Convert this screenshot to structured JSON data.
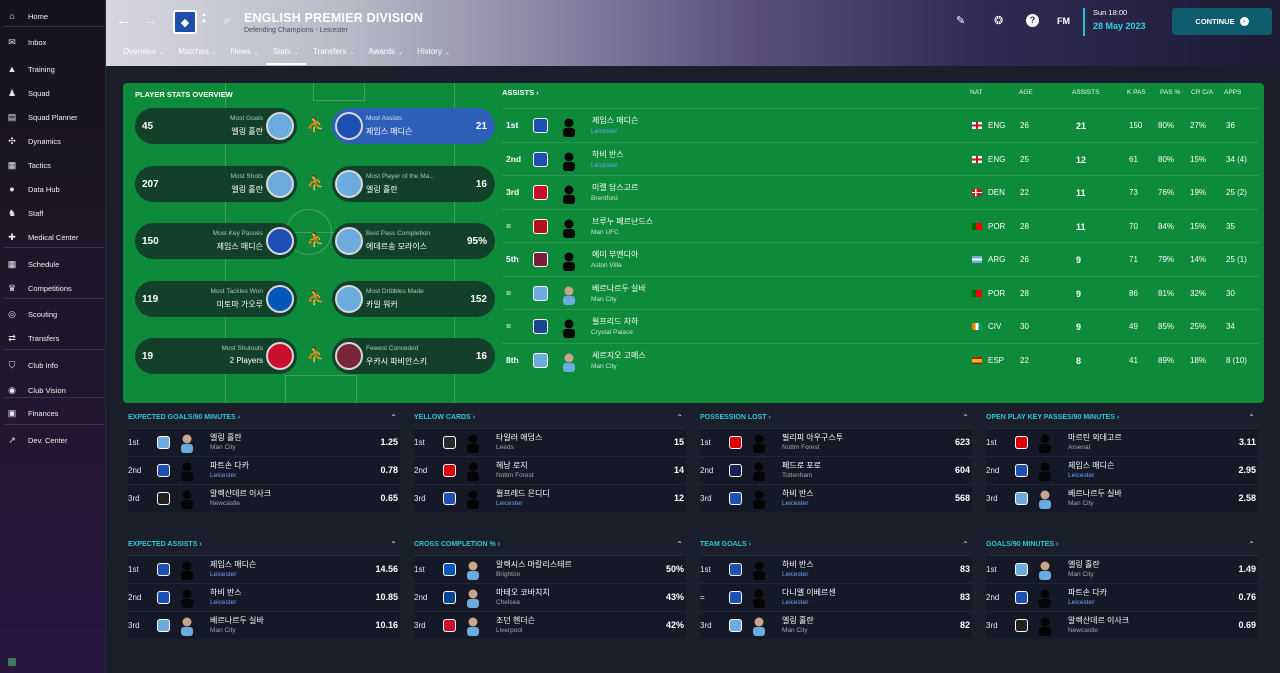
{
  "sidebar": {
    "items": [
      {
        "label": "Home",
        "icon": "home-icon",
        "glyph": "⌂"
      },
      {
        "label": "Inbox",
        "icon": "inbox-icon",
        "glyph": "✉"
      },
      {
        "label": "Training",
        "icon": "training-icon",
        "glyph": "▲"
      },
      {
        "label": "Squad",
        "icon": "squad-icon",
        "glyph": "♟"
      },
      {
        "label": "Squad Planner",
        "icon": "squad-planner-icon",
        "glyph": "▤"
      },
      {
        "label": "Dynamics",
        "icon": "dynamics-icon",
        "glyph": "✣"
      },
      {
        "label": "Tactics",
        "icon": "tactics-icon",
        "glyph": "▦"
      },
      {
        "label": "Data Hub",
        "icon": "data-hub-icon",
        "glyph": "●"
      },
      {
        "label": "Staff",
        "icon": "staff-icon",
        "glyph": "♞"
      },
      {
        "label": "Medical Center",
        "icon": "medical-icon",
        "glyph": "✚"
      },
      {
        "label": "Schedule",
        "icon": "schedule-icon",
        "glyph": "▦"
      },
      {
        "label": "Competitions",
        "icon": "trophy-icon",
        "glyph": "♛"
      },
      {
        "label": "Scouting",
        "icon": "scouting-icon",
        "glyph": "◎"
      },
      {
        "label": "Transfers",
        "icon": "transfers-icon",
        "glyph": "⇄"
      },
      {
        "label": "Club Info",
        "icon": "shield-icon",
        "glyph": "⛉"
      },
      {
        "label": "Club Vision",
        "icon": "vision-icon",
        "glyph": "◉"
      },
      {
        "label": "Finances",
        "icon": "finances-icon",
        "glyph": "▣"
      },
      {
        "label": "Dev. Center",
        "icon": "dev-center-icon",
        "glyph": "↗"
      }
    ]
  },
  "header": {
    "title": "ENGLISH PREMIER DIVISION",
    "subtitle": "Defending Champions - Leicester",
    "tabs": [
      "Overview",
      "Matches",
      "News",
      "Stats",
      "Transfers",
      "Awards",
      "History"
    ],
    "active_tab": "Stats",
    "date_line1": "Sun 18:00",
    "date_line2": "28 May 2023",
    "continue_label": "CONTINUE",
    "fm_label": "FM"
  },
  "overview": {
    "title": "PLAYER STATS OVERVIEW",
    "rows": [
      {
        "left": {
          "value": "45",
          "category": "Most Goals",
          "player": "엘링 홀란",
          "club": "mci"
        },
        "right": {
          "value": "21",
          "category": "Most Assists",
          "player": "제임스 매디슨",
          "club": "lei",
          "highlight": true
        }
      },
      {
        "left": {
          "value": "207",
          "category": "Most Shots",
          "player": "엘링 홀란",
          "club": "mci"
        },
        "right": {
          "value": "16",
          "category": "Most Player of the Ma...",
          "player": "엘링 홀란",
          "club": "mci"
        }
      },
      {
        "left": {
          "value": "150",
          "category": "Most Key Passes",
          "player": "제임스 매디슨",
          "club": "lei"
        },
        "right": {
          "value": "95%",
          "category": "Best Pass Completion",
          "player": "에데르송 모라이스",
          "club": "mci"
        }
      },
      {
        "left": {
          "value": "119",
          "category": "Most Tackles Won",
          "player": "미토마 가오루",
          "club": "bha"
        },
        "right": {
          "value": "152",
          "category": "Most Dribbles Made",
          "player": "카일 워커",
          "club": "mci"
        }
      },
      {
        "left": {
          "value": "19",
          "category": "Most Shutouts",
          "player": "2 Players",
          "club": "bre"
        },
        "right": {
          "value": "16",
          "category": "Fewest Conceded",
          "player": "우카시 파비안스키",
          "club": "whu"
        }
      }
    ]
  },
  "assists": {
    "title": "ASSISTS",
    "headers": {
      "nat": "NAT",
      "age": "AGE",
      "assists": "ASSISTS",
      "kpas": "K PAS",
      "pas": "PAS %",
      "crca": "CR C/A",
      "apps": "APPS"
    },
    "rows": [
      {
        "rank": "1st",
        "player": "제임스 매디슨",
        "club": "Leicester",
        "club_code": "lei",
        "nat": "ENG",
        "flag": "eng",
        "age": "26",
        "assists": "21",
        "kpas": "150",
        "pas": "80%",
        "crca": "27%",
        "apps": "36",
        "photo": false
      },
      {
        "rank": "2nd",
        "player": "하비 반스",
        "club": "Leicester",
        "club_code": "lei",
        "nat": "ENG",
        "flag": "eng",
        "age": "25",
        "assists": "12",
        "kpas": "61",
        "pas": "80%",
        "crca": "15%",
        "apps": "34 (4)",
        "photo": false
      },
      {
        "rank": "3rd",
        "player": "미켈 담스고르",
        "club": "Brentford",
        "club_code": "bre",
        "nat": "DEN",
        "flag": "den",
        "age": "22",
        "assists": "11",
        "kpas": "73",
        "pas": "76%",
        "crca": "19%",
        "apps": "25 (2)",
        "photo": false
      },
      {
        "rank": "=",
        "player": "브루누 페르난드스",
        "club": "Man UFC",
        "club_code": "mun",
        "nat": "POR",
        "flag": "por",
        "age": "28",
        "assists": "11",
        "kpas": "70",
        "pas": "84%",
        "crca": "15%",
        "apps": "35",
        "photo": false
      },
      {
        "rank": "5th",
        "player": "에미 부엔디아",
        "club": "Aston Villa",
        "club_code": "avl",
        "nat": "ARG",
        "flag": "arg",
        "age": "26",
        "assists": "9",
        "kpas": "71",
        "pas": "79%",
        "crca": "14%",
        "apps": "25 (1)",
        "photo": false
      },
      {
        "rank": "=",
        "player": "베르나르두 실바",
        "club": "Man City",
        "club_code": "mci",
        "nat": "POR",
        "flag": "por",
        "age": "28",
        "assists": "9",
        "kpas": "86",
        "pas": "81%",
        "crca": "32%",
        "apps": "30",
        "photo": true
      },
      {
        "rank": "=",
        "player": "윌프리드 자하",
        "club": "Crystal Palace",
        "club_code": "cry",
        "nat": "CIV",
        "flag": "civ",
        "age": "30",
        "assists": "9",
        "kpas": "49",
        "pas": "85%",
        "crca": "25%",
        "apps": "34",
        "photo": false
      },
      {
        "rank": "8th",
        "player": "세르지오 고메스",
        "club": "Man City",
        "club_code": "mci",
        "nat": "ESP",
        "flag": "esp",
        "age": "22",
        "assists": "8",
        "kpas": "41",
        "pas": "89%",
        "crca": "18%",
        "apps": "8 (10)",
        "photo": true
      }
    ]
  },
  "panels": [
    {
      "title": "EXPECTED GOALS/90 MINUTES",
      "rows": [
        {
          "rank": "1st",
          "player": "엘링 홀란",
          "club": "Man City",
          "club_code": "mci",
          "value": "1.25",
          "photo": true
        },
        {
          "rank": "2nd",
          "player": "파트손 다카",
          "club": "Leicester",
          "club_code": "lei",
          "value": "0.78",
          "photo": false
        },
        {
          "rank": "3rd",
          "player": "알렉산데르 이사크",
          "club": "Newcastle",
          "club_code": "new",
          "value": "0.65",
          "photo": false
        }
      ]
    },
    {
      "title": "YELLOW CARDS",
      "rows": [
        {
          "rank": "1st",
          "player": "타일러 애덤스",
          "club": "Leeds",
          "club_code": "lee",
          "value": "15",
          "photo": false
        },
        {
          "rank": "2nd",
          "player": "헤낭 로지",
          "club": "Nottm Forest",
          "club_code": "nfo",
          "value": "14",
          "photo": false
        },
        {
          "rank": "3rd",
          "player": "윌프레드 은디디",
          "club": "Leicester",
          "club_code": "lei",
          "value": "12",
          "photo": false
        }
      ]
    },
    {
      "title": "POSSESSION LOST",
      "rows": [
        {
          "rank": "1st",
          "player": "필리피 아우구스투",
          "club": "Nottm Forest",
          "club_code": "nfo",
          "value": "623",
          "photo": false
        },
        {
          "rank": "2nd",
          "player": "페드로 포로",
          "club": "Tottenham",
          "club_code": "tot",
          "value": "604",
          "photo": false
        },
        {
          "rank": "3rd",
          "player": "하비 반스",
          "club": "Leicester",
          "club_code": "lei",
          "value": "568",
          "photo": false
        }
      ]
    },
    {
      "title": "OPEN PLAY KEY PASSES/90 MINUTES",
      "rows": [
        {
          "rank": "1st",
          "player": "마르틴 외데고르",
          "club": "Arsenal",
          "club_code": "ars",
          "value": "3.11",
          "photo": false
        },
        {
          "rank": "2nd",
          "player": "제임스 매디슨",
          "club": "Leicester",
          "club_code": "lei",
          "value": "2.95",
          "photo": false
        },
        {
          "rank": "3rd",
          "player": "베르나르두 실바",
          "club": "Man City",
          "club_code": "mci",
          "value": "2.58",
          "photo": true
        }
      ]
    },
    {
      "title": "EXPECTED ASSISTS",
      "rows": [
        {
          "rank": "1st",
          "player": "제임스 매디슨",
          "club": "Leicester",
          "club_code": "lei",
          "value": "14.56",
          "photo": false
        },
        {
          "rank": "2nd",
          "player": "하비 반스",
          "club": "Leicester",
          "club_code": "lei",
          "value": "10.85",
          "photo": false
        },
        {
          "rank": "3rd",
          "player": "베르나르두 실바",
          "club": "Man City",
          "club_code": "mci",
          "value": "10.16",
          "photo": true
        }
      ]
    },
    {
      "title": "CROSS COMPLETION %",
      "rows": [
        {
          "rank": "1st",
          "player": "알렉시스 마칼리스테르",
          "club": "Brighton",
          "club_code": "bha",
          "value": "50%",
          "photo": true
        },
        {
          "rank": "2nd",
          "player": "마테오 코바치치",
          "club": "Chelsea",
          "club_code": "che",
          "value": "43%",
          "photo": true
        },
        {
          "rank": "3rd",
          "player": "조던 헨더슨",
          "club": "Liverpool",
          "club_code": "liv",
          "value": "42%",
          "photo": true
        }
      ]
    },
    {
      "title": "TEAM GOALS",
      "rows": [
        {
          "rank": "1st",
          "player": "하비 반스",
          "club": "Leicester",
          "club_code": "lei",
          "value": "83",
          "photo": false
        },
        {
          "rank": "=",
          "player": "다니엘 이베르센",
          "club": "Leicester",
          "club_code": "lei",
          "value": "83",
          "photo": false
        },
        {
          "rank": "3rd",
          "player": "엘링 홀란",
          "club": "Man City",
          "club_code": "mci",
          "value": "82",
          "photo": true
        }
      ]
    },
    {
      "title": "GOALS/90 MINUTES",
      "rows": [
        {
          "rank": "1st",
          "player": "엘링 홀란",
          "club": "Man City",
          "club_code": "mci",
          "value": "1.49",
          "photo": true
        },
        {
          "rank": "2nd",
          "player": "파트손 다카",
          "club": "Leicester",
          "club_code": "lei",
          "value": "0.76",
          "photo": false
        },
        {
          "rank": "3rd",
          "player": "알렉산데르 이사크",
          "club": "Newcastle",
          "club_code": "new",
          "value": "0.69",
          "photo": false
        }
      ]
    }
  ],
  "club_colors": {
    "mci": "#6cabdd",
    "lei": "#1d4fb4",
    "bre": "#c8102e",
    "mun": "#b3121a",
    "avl": "#7a1e3a",
    "cry": "#1b458f",
    "bha": "#0057b8",
    "whu": "#7a263a",
    "new": "#241f20",
    "lee": "#2a2a2a",
    "nfo": "#dd0000",
    "tot": "#132257",
    "ars": "#db0007",
    "che": "#034694",
    "liv": "#c8102e"
  },
  "club_glyphs": {
    "mci": "⚓",
    "lei": "🦊",
    "bre": "✚",
    "mun": "◆",
    "avl": "✚",
    "cry": "✶",
    "bha": "◉",
    "whu": "⚒",
    "new": "▮",
    "lee": "●",
    "nfo": "✚",
    "tot": "◉",
    "ars": "◉",
    "che": "◉",
    "liv": "◆"
  },
  "colors": {
    "accent": "#35c6d6",
    "pitch": "#0d8a3a",
    "highlight": "#2e5fb8",
    "leicester_link": "#6fa6ff"
  }
}
